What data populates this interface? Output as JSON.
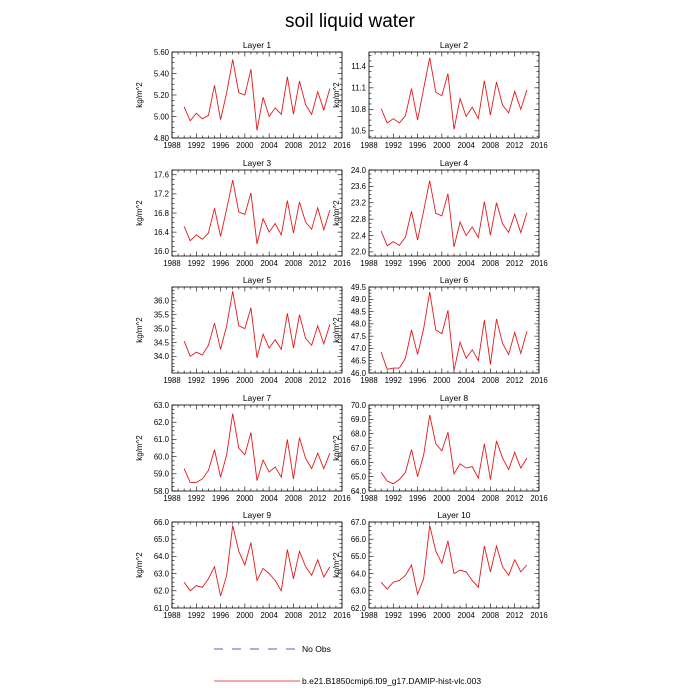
{
  "figure": {
    "title": "soil liquid water"
  },
  "legend": {
    "obs_label": "No Obs",
    "model_label": "b.e21.B1850cmip6.f09_g17.DAMIP-hist-vlc.003",
    "obs_color": "#2b2b8c",
    "model_color": "#e31a1c"
  },
  "chart_data": [
    {
      "type": "line",
      "title": "Layer 1",
      "ylabel": "kg/m^2",
      "xlim": [
        1988,
        2016
      ],
      "xticks": [
        "1988",
        "1992",
        "1996",
        "2000",
        "2004",
        "2008",
        "2012",
        "2016"
      ],
      "ylim": [
        4.8,
        5.6
      ],
      "yticks": [
        "4.80",
        "5.00",
        "5.20",
        "5.40",
        "5.60"
      ],
      "x": [
        1990,
        1991,
        1992,
        1993,
        1994,
        1995,
        1996,
        1997,
        1998,
        1999,
        2000,
        2001,
        2002,
        2003,
        2004,
        2005,
        2006,
        2007,
        2008,
        2009,
        2010,
        2011,
        2012,
        2013,
        2014
      ],
      "series": [
        {
          "values": [
            5.09,
            4.96,
            5.03,
            4.98,
            5.01,
            5.29,
            4.97,
            5.22,
            5.53,
            5.22,
            5.2,
            5.44,
            4.87,
            5.18,
            5.0,
            5.08,
            5.02,
            5.37,
            5.02,
            5.33,
            5.11,
            5.02,
            5.23,
            5.06,
            5.26
          ]
        }
      ]
    },
    {
      "type": "line",
      "title": "Layer 2",
      "ylabel": "kg/m^2",
      "xlim": [
        1988,
        2016
      ],
      "xticks": [
        "1988",
        "1992",
        "1996",
        "2000",
        "2004",
        "2008",
        "2012",
        "2016"
      ],
      "ylim": [
        10.4,
        11.6
      ],
      "yticks": [
        "10.5",
        "10.8",
        "11.1",
        "11.4"
      ],
      "x": [
        1990,
        1991,
        1992,
        1993,
        1994,
        1995,
        1996,
        1997,
        1998,
        1999,
        2000,
        2001,
        2002,
        2003,
        2004,
        2005,
        2006,
        2007,
        2008,
        2009,
        2010,
        2011,
        2012,
        2013,
        2014
      ],
      "series": [
        {
          "values": [
            10.81,
            10.61,
            10.67,
            10.61,
            10.71,
            11.09,
            10.65,
            11.09,
            11.52,
            11.04,
            10.99,
            11.3,
            10.52,
            10.95,
            10.7,
            10.83,
            10.67,
            11.2,
            10.72,
            11.18,
            10.86,
            10.75,
            11.05,
            10.8,
            11.07
          ]
        }
      ]
    },
    {
      "type": "line",
      "title": "Layer 3",
      "ylabel": "kg/m^2",
      "xlim": [
        1988,
        2016
      ],
      "xticks": [
        "1988",
        "1992",
        "1996",
        "2000",
        "2004",
        "2008",
        "2012",
        "2016"
      ],
      "ylim": [
        15.9,
        17.7
      ],
      "yticks": [
        "16.0",
        "16.4",
        "16.8",
        "17.2",
        "17.6"
      ],
      "x": [
        1990,
        1991,
        1992,
        1993,
        1994,
        1995,
        1996,
        1997,
        1998,
        1999,
        2000,
        2001,
        2002,
        2003,
        2004,
        2005,
        2006,
        2007,
        2008,
        2009,
        2010,
        2011,
        2012,
        2013,
        2014
      ],
      "series": [
        {
          "values": [
            16.52,
            16.22,
            16.34,
            16.25,
            16.38,
            16.9,
            16.31,
            16.88,
            17.49,
            16.82,
            16.77,
            17.22,
            16.15,
            16.68,
            16.4,
            16.58,
            16.34,
            17.06,
            16.38,
            17.03,
            16.61,
            16.46,
            16.91,
            16.45,
            16.86
          ]
        }
      ]
    },
    {
      "type": "line",
      "title": "Layer 4",
      "ylabel": "kg/m^2",
      "xlim": [
        1988,
        2016
      ],
      "xticks": [
        "1988",
        "1992",
        "1996",
        "2000",
        "2004",
        "2008",
        "2012",
        "2016"
      ],
      "ylim": [
        21.9,
        24.0
      ],
      "yticks": [
        "22.0",
        "22.4",
        "22.8",
        "23.2",
        "23.6",
        "24.0"
      ],
      "x": [
        1990,
        1991,
        1992,
        1993,
        1994,
        1995,
        1996,
        1997,
        1998,
        1999,
        2000,
        2001,
        2002,
        2003,
        2004,
        2005,
        2006,
        2007,
        2008,
        2009,
        2010,
        2011,
        2012,
        2013,
        2014
      ],
      "series": [
        {
          "values": [
            22.51,
            22.15,
            22.25,
            22.16,
            22.36,
            22.99,
            22.29,
            23.0,
            23.74,
            22.94,
            22.88,
            23.42,
            22.12,
            22.73,
            22.4,
            22.61,
            22.35,
            23.23,
            22.41,
            23.2,
            22.68,
            22.48,
            22.92,
            22.47,
            22.96
          ]
        }
      ]
    },
    {
      "type": "line",
      "title": "Layer 5",
      "ylabel": "kg/m^2",
      "xlim": [
        1988,
        2016
      ],
      "xticks": [
        "1988",
        "1992",
        "1996",
        "2000",
        "2004",
        "2008",
        "2012",
        "2016"
      ],
      "ylim": [
        33.4,
        36.5
      ],
      "yticks": [
        "34.0",
        "34.5",
        "35.0",
        "35.5",
        "36.0"
      ],
      "x": [
        1990,
        1991,
        1992,
        1993,
        1994,
        1995,
        1996,
        1997,
        1998,
        1999,
        2000,
        2001,
        2002,
        2003,
        2004,
        2005,
        2006,
        2007,
        2008,
        2009,
        2010,
        2011,
        2012,
        2013,
        2014
      ],
      "series": [
        {
          "values": [
            34.55,
            34.0,
            34.15,
            34.05,
            34.4,
            35.2,
            34.25,
            35.1,
            36.35,
            35.1,
            35.0,
            35.75,
            33.95,
            34.8,
            34.3,
            34.6,
            34.25,
            35.55,
            34.3,
            35.5,
            34.65,
            34.4,
            35.1,
            34.45,
            35.15
          ]
        }
      ]
    },
    {
      "type": "line",
      "title": "Layer 6",
      "ylabel": "kg/m^2",
      "xlim": [
        1988,
        2016
      ],
      "xticks": [
        "1988",
        "1992",
        "1996",
        "2000",
        "2004",
        "2008",
        "2012",
        "2016"
      ],
      "ylim": [
        46.0,
        49.5
      ],
      "yticks": [
        "46.0",
        "46.5",
        "47.0",
        "47.5",
        "48.0",
        "48.5",
        "49.0",
        "49.5"
      ],
      "x": [
        1990,
        1991,
        1992,
        1993,
        1994,
        1995,
        1996,
        1997,
        1998,
        1999,
        2000,
        2001,
        2002,
        2003,
        2004,
        2005,
        2006,
        2007,
        2008,
        2009,
        2010,
        2011,
        2012,
        2013,
        2014
      ],
      "series": [
        {
          "values": [
            46.85,
            46.15,
            46.2,
            46.2,
            46.6,
            47.75,
            46.75,
            47.8,
            49.3,
            47.75,
            47.6,
            48.55,
            46.1,
            47.25,
            46.6,
            46.95,
            46.5,
            48.15,
            46.35,
            48.2,
            47.2,
            46.75,
            47.65,
            46.8,
            47.7
          ]
        }
      ]
    },
    {
      "type": "line",
      "title": "Layer 7",
      "ylabel": "kg/m^2",
      "xlim": [
        1988,
        2016
      ],
      "xticks": [
        "1988",
        "1992",
        "1996",
        "2000",
        "2004",
        "2008",
        "2012",
        "2016"
      ],
      "ylim": [
        58.0,
        63.0
      ],
      "yticks": [
        "58.0",
        "59.0",
        "60.0",
        "61.0",
        "62.0",
        "63.0"
      ],
      "x": [
        1990,
        1991,
        1992,
        1993,
        1994,
        1995,
        1996,
        1997,
        1998,
        1999,
        2000,
        2001,
        2002,
        2003,
        2004,
        2005,
        2006,
        2007,
        2008,
        2009,
        2010,
        2011,
        2012,
        2013,
        2014
      ],
      "series": [
        {
          "values": [
            59.3,
            58.5,
            58.5,
            58.7,
            59.2,
            60.4,
            58.8,
            60.1,
            62.5,
            60.5,
            60.1,
            61.4,
            58.6,
            59.8,
            59.1,
            59.4,
            58.8,
            61.0,
            58.7,
            61.1,
            59.9,
            59.3,
            60.2,
            59.3,
            60.2
          ]
        }
      ]
    },
    {
      "type": "line",
      "title": "Layer 8",
      "ylabel": "kg/m^2",
      "xlim": [
        1988,
        2016
      ],
      "xticks": [
        "1988",
        "1992",
        "1996",
        "2000",
        "2004",
        "2008",
        "2012",
        "2016"
      ],
      "ylim": [
        64.0,
        70.0
      ],
      "yticks": [
        "64.0",
        "65.0",
        "66.0",
        "67.0",
        "68.0",
        "69.0",
        "70.0"
      ],
      "x": [
        1990,
        1991,
        1992,
        1993,
        1994,
        1995,
        1996,
        1997,
        1998,
        1999,
        2000,
        2001,
        2002,
        2003,
        2004,
        2005,
        2006,
        2007,
        2008,
        2009,
        2010,
        2011,
        2012,
        2013,
        2014
      ],
      "series": [
        {
          "values": [
            65.3,
            64.7,
            64.5,
            64.8,
            65.3,
            66.9,
            65.0,
            66.5,
            69.3,
            67.3,
            66.8,
            68.1,
            65.2,
            65.9,
            65.6,
            65.7,
            64.9,
            67.3,
            64.8,
            67.5,
            66.3,
            65.5,
            66.7,
            65.6,
            66.3
          ]
        }
      ]
    },
    {
      "type": "line",
      "title": "Layer 9",
      "ylabel": "kg/m^2",
      "xlim": [
        1988,
        2016
      ],
      "xticks": [
        "1988",
        "1992",
        "1996",
        "2000",
        "2004",
        "2008",
        "2012",
        "2016"
      ],
      "ylim": [
        61.0,
        66.0
      ],
      "yticks": [
        "61.0",
        "62.0",
        "63.0",
        "64.0",
        "65.0",
        "66.0"
      ],
      "x": [
        1990,
        1991,
        1992,
        1993,
        1994,
        1995,
        1996,
        1997,
        1998,
        1999,
        2000,
        2001,
        2002,
        2003,
        2004,
        2005,
        2006,
        2007,
        2008,
        2009,
        2010,
        2011,
        2012,
        2013,
        2014
      ],
      "series": [
        {
          "values": [
            62.5,
            62.0,
            62.3,
            62.2,
            62.7,
            63.4,
            61.7,
            62.9,
            65.8,
            64.3,
            63.5,
            64.8,
            62.6,
            63.3,
            63.0,
            62.6,
            62.0,
            64.4,
            62.7,
            64.3,
            63.4,
            62.9,
            63.8,
            62.8,
            63.4
          ]
        }
      ]
    },
    {
      "type": "line",
      "title": "Layer 10",
      "ylabel": "kg/m^2",
      "xlim": [
        1988,
        2016
      ],
      "xticks": [
        "1988",
        "1992",
        "1996",
        "2000",
        "2004",
        "2008",
        "2012",
        "2016"
      ],
      "ylim": [
        62.0,
        67.0
      ],
      "yticks": [
        "62.0",
        "63.0",
        "64.0",
        "65.0",
        "66.0",
        "67.0"
      ],
      "x": [
        1990,
        1991,
        1992,
        1993,
        1994,
        1995,
        1996,
        1997,
        1998,
        1999,
        2000,
        2001,
        2002,
        2003,
        2004,
        2005,
        2006,
        2007,
        2008,
        2009,
        2010,
        2011,
        2012,
        2013,
        2014
      ],
      "series": [
        {
          "values": [
            63.5,
            63.1,
            63.5,
            63.6,
            63.9,
            64.5,
            62.8,
            63.7,
            66.8,
            65.3,
            64.6,
            65.9,
            64.0,
            64.2,
            64.1,
            63.6,
            63.2,
            65.6,
            64.1,
            65.6,
            64.4,
            63.9,
            64.8,
            64.1,
            64.5
          ]
        }
      ]
    }
  ]
}
